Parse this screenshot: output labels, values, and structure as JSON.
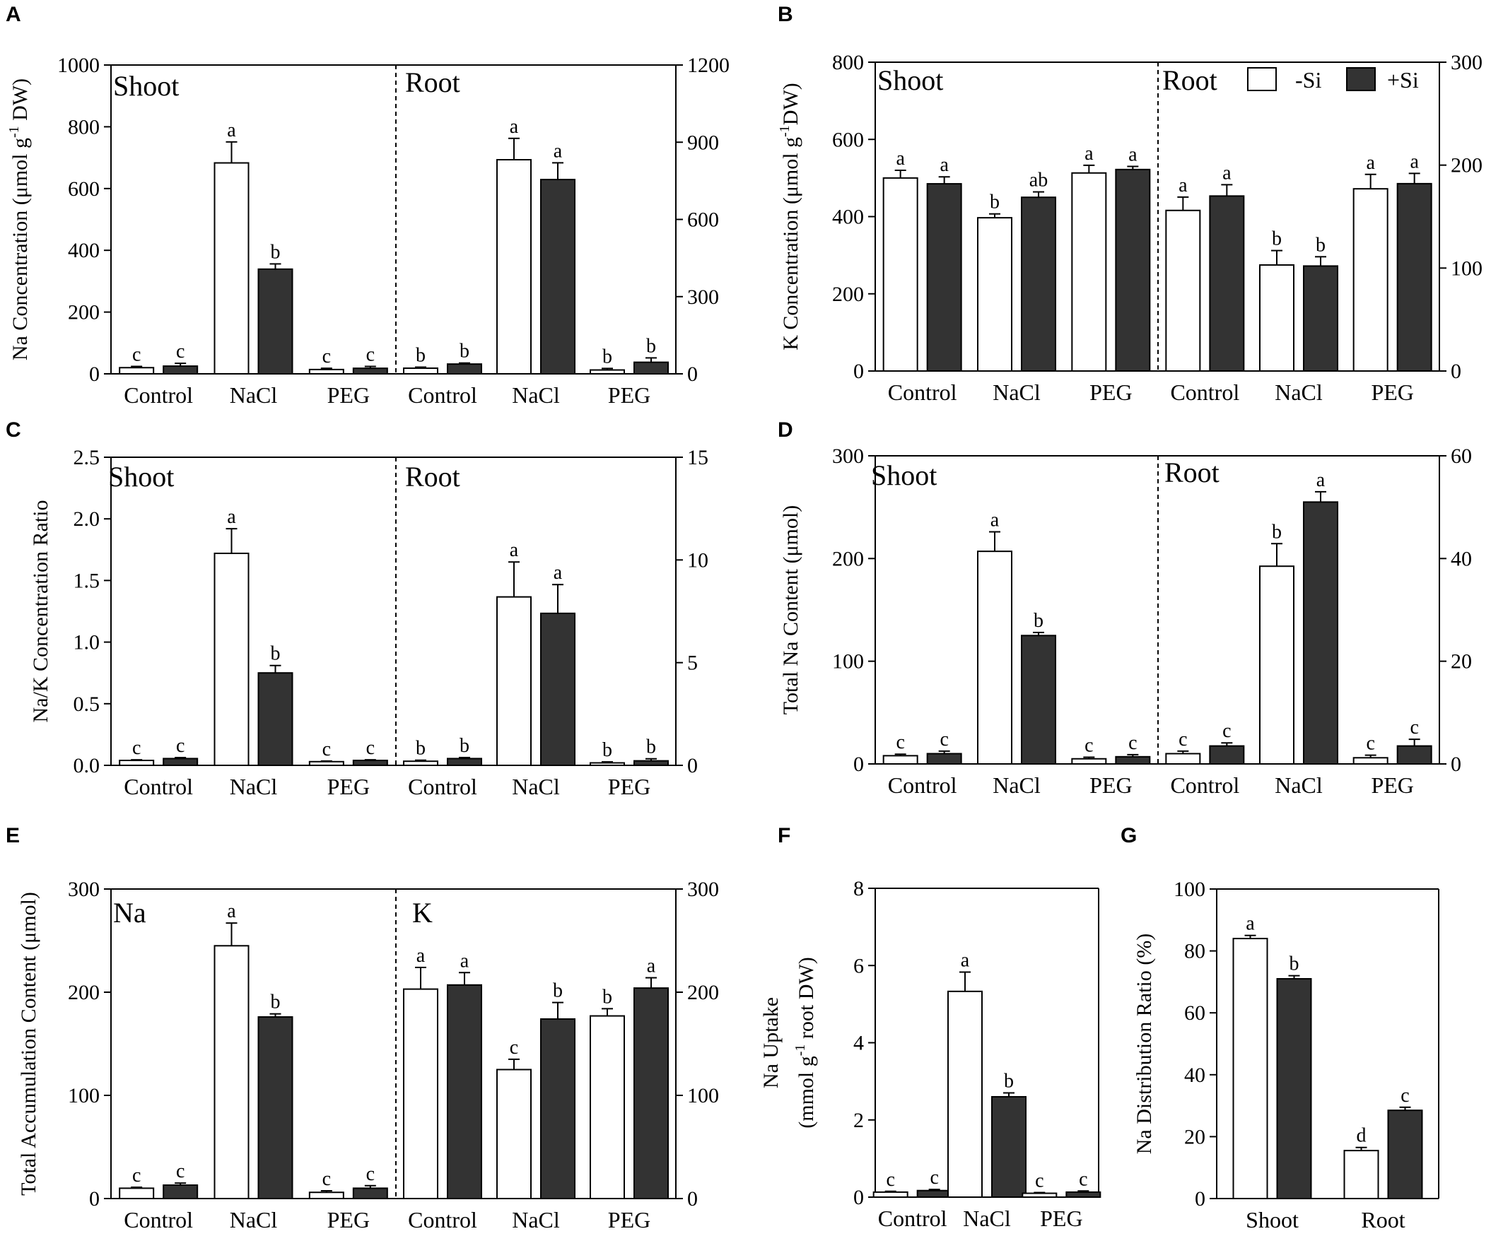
{
  "figure": {
    "legend": {
      "minus_si": "-Si",
      "plus_si": "+Si"
    },
    "colors": {
      "minus_si_fill": "#ffffff",
      "plus_si_fill": "#333333",
      "axis": "#000000",
      "bar_stroke": "#000000"
    }
  },
  "chart_data": [
    {
      "id": "A",
      "panel_label": "A",
      "type": "bar",
      "ylabel_pre": "Na Concentration (μmol g",
      "ylabel_sup": "-1",
      "ylabel_post": " DW)",
      "regions": [
        {
          "title": "Shoot",
          "categories": [
            "Control",
            "NaCl",
            "PEG"
          ],
          "ylim": [
            0,
            1000
          ],
          "yticks": [
            0,
            200,
            400,
            600,
            800,
            1000
          ],
          "axis_side": "left",
          "series": [
            {
              "name": "-Si",
              "values": [
                20,
                683,
                14
              ],
              "errors": [
                4,
                68,
                4
              ],
              "letters": [
                "c",
                "a",
                "c"
              ]
            },
            {
              "name": "+Si",
              "values": [
                25,
                339,
                18
              ],
              "errors": [
                9,
                17,
                6
              ],
              "letters": [
                "c",
                "b",
                "c"
              ]
            }
          ]
        },
        {
          "title": "Root",
          "categories": [
            "Control",
            "NaCl",
            "PEG"
          ],
          "ylim": [
            0,
            1200
          ],
          "yticks": [
            0,
            300,
            600,
            900,
            1200
          ],
          "axis_side": "right",
          "series": [
            {
              "name": "-Si",
              "values": [
                22,
                832,
                15
              ],
              "errors": [
                4,
                83,
                6
              ],
              "letters": [
                "b",
                "a",
                "b"
              ]
            },
            {
              "name": "+Si",
              "values": [
                38,
                755,
                45
              ],
              "errors": [
                4,
                65,
                17
              ],
              "letters": [
                "b",
                "a",
                "b"
              ]
            }
          ]
        }
      ]
    },
    {
      "id": "B",
      "panel_label": "B",
      "type": "bar",
      "ylabel_pre": "K Concentration (μmol g",
      "ylabel_sup": "-1",
      "ylabel_post": "DW)",
      "legend": true,
      "regions": [
        {
          "title": "Shoot",
          "categories": [
            "Control",
            "NaCl",
            "PEG"
          ],
          "ylim": [
            0,
            800
          ],
          "yticks": [
            0,
            200,
            400,
            600,
            800
          ],
          "axis_side": "left",
          "series": [
            {
              "name": "-Si",
              "values": [
                500,
                397,
                513
              ],
              "errors": [
                20,
                10,
                20
              ],
              "letters": [
                "a",
                "b",
                "a"
              ]
            },
            {
              "name": "+Si",
              "values": [
                485,
                450,
                522
              ],
              "errors": [
                18,
                14,
                8
              ],
              "letters": [
                "a",
                "ab",
                "a"
              ]
            }
          ]
        },
        {
          "title": "Root",
          "categories": [
            "Control",
            "NaCl",
            "PEG"
          ],
          "ylim": [
            0,
            300
          ],
          "yticks": [
            0,
            100,
            200,
            300
          ],
          "axis_side": "right",
          "series": [
            {
              "name": "-Si",
              "values": [
                156,
                103,
                177
              ],
              "errors": [
                13,
                14,
                14
              ],
              "letters": [
                "a",
                "b",
                "a"
              ]
            },
            {
              "name": "+Si",
              "values": [
                170,
                102,
                182
              ],
              "errors": [
                11,
                9,
                10
              ],
              "letters": [
                "a",
                "b",
                "a"
              ]
            }
          ]
        }
      ]
    },
    {
      "id": "C",
      "panel_label": "C",
      "type": "bar",
      "ylabel_pre": "Na/K Concentration Ratio",
      "ylabel_sup": "",
      "ylabel_post": "",
      "regions": [
        {
          "title": "Shoot",
          "categories": [
            "Control",
            "NaCl",
            "PEG"
          ],
          "ylim": [
            0,
            2.5
          ],
          "yticks": [
            "0.0",
            "0.5",
            "1.0",
            "1.5",
            "2.0",
            "2.5"
          ],
          "axis_side": "left",
          "series": [
            {
              "name": "-Si",
              "values": [
                0.04,
                1.72,
                0.03
              ],
              "errors": [
                0.005,
                0.2,
                0.005
              ],
              "letters": [
                "c",
                "a",
                "c"
              ]
            },
            {
              "name": "+Si",
              "values": [
                0.055,
                0.75,
                0.04
              ],
              "errors": [
                0.008,
                0.06,
                0.005
              ],
              "letters": [
                "c",
                "b",
                "c"
              ]
            }
          ]
        },
        {
          "title": "Root",
          "categories": [
            "Control",
            "NaCl",
            "PEG"
          ],
          "ylim": [
            0,
            15
          ],
          "yticks": [
            0,
            5,
            10,
            15
          ],
          "axis_side": "right",
          "series": [
            {
              "name": "-Si",
              "values": [
                0.2,
                8.2,
                0.12
              ],
              "errors": [
                0.05,
                1.7,
                0.05
              ],
              "letters": [
                "b",
                "a",
                "b"
              ]
            },
            {
              "name": "+Si",
              "values": [
                0.33,
                7.4,
                0.22
              ],
              "errors": [
                0.05,
                1.4,
                0.1
              ],
              "letters": [
                "b",
                "a",
                "b"
              ]
            }
          ]
        }
      ]
    },
    {
      "id": "D",
      "panel_label": "D",
      "type": "bar",
      "ylabel_pre": "Total Na Content (μmol)",
      "ylabel_sup": "",
      "ylabel_post": "",
      "regions": [
        {
          "title": "Shoot",
          "categories": [
            "Control",
            "NaCl",
            "PEG"
          ],
          "ylim": [
            0,
            300
          ],
          "yticks": [
            0,
            100,
            200,
            300
          ],
          "axis_side": "left",
          "series": [
            {
              "name": "-Si",
              "values": [
                8,
                207,
                5
              ],
              "errors": [
                1.5,
                19,
                1.5
              ],
              "letters": [
                "c",
                "a",
                "c"
              ]
            },
            {
              "name": "+Si",
              "values": [
                10,
                125,
                7
              ],
              "errors": [
                2.5,
                3,
                2
              ],
              "letters": [
                "c",
                "b",
                "c"
              ]
            }
          ]
        },
        {
          "title": "Root",
          "categories": [
            "Control",
            "NaCl",
            "PEG"
          ],
          "ylim": [
            0,
            60
          ],
          "yticks": [
            0,
            20,
            40,
            60
          ],
          "axis_side": "right",
          "series": [
            {
              "name": "-Si",
              "values": [
                2,
                38.5,
                1.2
              ],
              "errors": [
                0.5,
                4.4,
                0.5
              ],
              "letters": [
                "c",
                "b",
                "c"
              ]
            },
            {
              "name": "+Si",
              "values": [
                3.5,
                51,
                3.5
              ],
              "errors": [
                0.6,
                2,
                1.3
              ],
              "letters": [
                "c",
                "a",
                "c"
              ]
            }
          ]
        }
      ]
    },
    {
      "id": "E",
      "panel_label": "E",
      "type": "bar",
      "ylabel_pre": "Total Accumulation Content (μmol)",
      "ylabel_sup": "",
      "ylabel_post": "",
      "regions": [
        {
          "title": "Na",
          "categories": [
            "Control",
            "NaCl",
            "PEG"
          ],
          "ylim": [
            0,
            300
          ],
          "yticks": [
            0,
            100,
            200,
            300
          ],
          "axis_side": "left",
          "series": [
            {
              "name": "-Si",
              "values": [
                10,
                245,
                6
              ],
              "errors": [
                1,
                22,
                1.5
              ],
              "letters": [
                "c",
                "a",
                "c"
              ]
            },
            {
              "name": "+Si",
              "values": [
                13,
                176,
                10
              ],
              "errors": [
                2,
                3,
                2.5
              ],
              "letters": [
                "c",
                "b",
                "c"
              ]
            }
          ]
        },
        {
          "title": "K",
          "categories": [
            "Control",
            "NaCl",
            "PEG"
          ],
          "ylim": [
            0,
            300
          ],
          "yticks": [
            0,
            100,
            200,
            300
          ],
          "axis_side": "right",
          "series": [
            {
              "name": "-Si",
              "values": [
                203,
                125,
                177
              ],
              "errors": [
                21,
                10,
                7
              ],
              "letters": [
                "a",
                "c",
                "b"
              ]
            },
            {
              "name": "+Si",
              "values": [
                207,
                174,
                204
              ],
              "errors": [
                12,
                16,
                10
              ],
              "letters": [
                "a",
                "b",
                "a"
              ]
            }
          ]
        }
      ]
    },
    {
      "id": "F",
      "panel_label": "F",
      "type": "bar",
      "ylabel_line1": "Na Uptake",
      "ylabel_pre": "(mmol g",
      "ylabel_sup": "-1",
      "ylabel_post": " root DW)",
      "regions": [
        {
          "title": "",
          "categories": [
            "Control",
            "NaCl",
            "PEG"
          ],
          "ylim": [
            0,
            8
          ],
          "yticks": [
            0,
            2,
            4,
            6,
            8
          ],
          "axis_side": "left",
          "series": [
            {
              "name": "-Si",
              "values": [
                0.13,
                5.33,
                0.1
              ],
              "errors": [
                0.02,
                0.5,
                0.02
              ],
              "letters": [
                "c",
                "a",
                "c"
              ]
            },
            {
              "name": "+Si",
              "values": [
                0.17,
                2.6,
                0.13
              ],
              "errors": [
                0.03,
                0.1,
                0.03
              ],
              "letters": [
                "c",
                "b",
                "c"
              ]
            }
          ]
        }
      ]
    },
    {
      "id": "G",
      "panel_label": "G",
      "type": "bar",
      "ylabel_pre": "Na Distribution Ratio (%)",
      "ylabel_sup": "",
      "ylabel_post": "",
      "regions": [
        {
          "title": "",
          "categories": [
            "Shoot",
            "Root"
          ],
          "ylim": [
            0,
            100
          ],
          "yticks": [
            0,
            20,
            40,
            60,
            80,
            100
          ],
          "axis_side": "left",
          "series": [
            {
              "name": "-Si",
              "values": [
                84,
                15.5
              ],
              "errors": [
                1,
                1
              ],
              "letters": [
                "a",
                "d"
              ]
            },
            {
              "name": "+Si",
              "values": [
                71,
                28.5
              ],
              "errors": [
                1,
                1
              ],
              "letters": [
                "b",
                "c"
              ]
            }
          ]
        }
      ]
    }
  ]
}
